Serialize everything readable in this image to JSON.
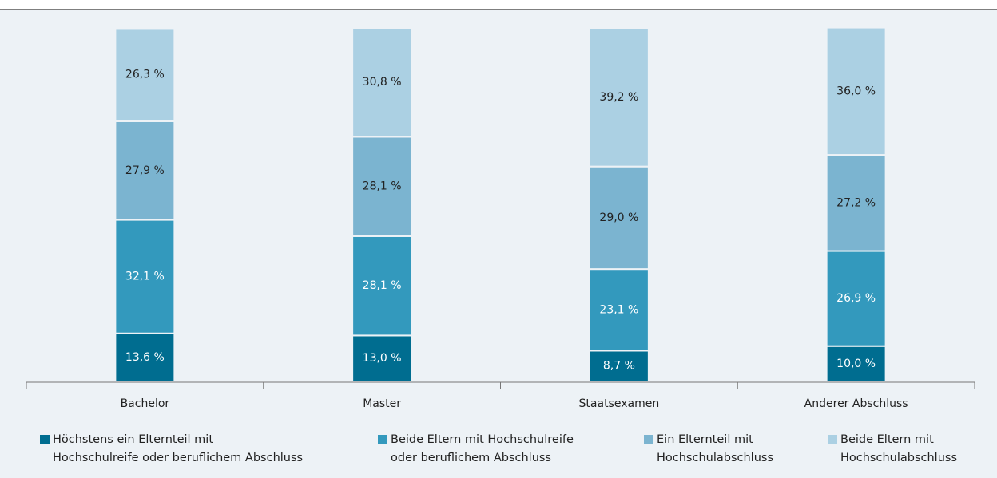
{
  "chart_data": {
    "type": "stacked_bar",
    "categories": [
      "Bachelor",
      "Master",
      "Staatsexamen",
      "Anderer Abschluss"
    ],
    "series": [
      {
        "name": "Höchstens ein Elternteil mit\nHochschulreife oder beruflichem Abschluss",
        "color": "#006d90",
        "values": [
          13.6,
          13.0,
          8.7,
          10.0
        ],
        "value_labels": [
          "13,6 %",
          "13,0 %",
          "8,7 %",
          "10,0 %"
        ]
      },
      {
        "name": "Beide Eltern mit Hochschulreife\noder beruflichem Abschluss",
        "color": "#3399bd",
        "values": [
          32.1,
          28.1,
          23.1,
          26.9
        ],
        "value_labels": [
          "32,1 %",
          "28,1 %",
          "23,1 %",
          "26,9 %"
        ]
      },
      {
        "name": "Ein Elternteil mit\nHochschulabschluss",
        "color": "#7bb4d0",
        "values": [
          27.9,
          28.1,
          29.0,
          27.2
        ],
        "value_labels": [
          "27,9 %",
          "28,1 %",
          "29,0 %",
          "27,2 %"
        ]
      },
      {
        "name": "Beide Eltern mit\nHochschulabschluss",
        "color": "#abd0e3",
        "values": [
          26.3,
          30.8,
          39.2,
          36.0
        ],
        "value_labels": [
          "26,3 %",
          "30,8 %",
          "39,2 %",
          "36,0 %"
        ]
      }
    ],
    "ylim": [
      0,
      100
    ]
  }
}
